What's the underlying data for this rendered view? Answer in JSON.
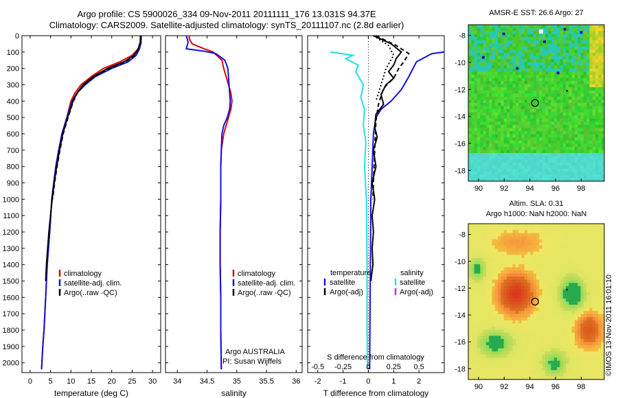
{
  "header": {
    "line1": "Argo profile: CS 5900026_334 09-Nov-2011 20111111_176 13.031S 94.37E",
    "line2": "Climatology: CARS2009. Satellite-adjusted climatology: synTS_20111107.nc (2.8d earlier)"
  },
  "right": {
    "sst_title": "AMSR-E SST: 26.6 Argo: 27",
    "sla_title1": "Altim. SLA: 0.31",
    "sla_title2": "Argo h1000: NaN h2000: NaN",
    "imos_label": "©IMOS 13-Nov-2011 16:01:10"
  },
  "colors": {
    "climatology": "#e00000",
    "satellite": "#1010e0",
    "argo": "#000000",
    "sat_salinity": "#20e0e8",
    "argo_salinity": "#e020e0"
  },
  "chart_data": [
    {
      "type": "line",
      "xlabel": "temperature (deg C)",
      "ylabel": "",
      "xlim": [
        -2,
        32
      ],
      "ylim": [
        2060,
        0
      ],
      "xticks": [
        0,
        5,
        10,
        15,
        20,
        25,
        30
      ],
      "yticks": [
        0,
        100,
        200,
        300,
        400,
        500,
        600,
        700,
        800,
        900,
        1000,
        1100,
        1200,
        1300,
        1400,
        1500,
        1600,
        1700,
        1800,
        1900,
        2000
      ],
      "legend": [
        "climatology",
        "satellite-adj. clim.",
        "Argo(..raw -QC)"
      ],
      "series": [
        {
          "name": "climatology",
          "color": "#e00000",
          "dash": "",
          "points": [
            [
              27,
              0
            ],
            [
              27,
              40
            ],
            [
              26.5,
              80
            ],
            [
              25,
              120
            ],
            [
              22,
              160
            ],
            [
              18,
              200
            ],
            [
              15,
              250
            ],
            [
              12.5,
              300
            ],
            [
              11,
              350
            ],
            [
              10,
              400
            ],
            [
              9,
              500
            ],
            [
              7.8,
              600
            ],
            [
              7,
              700
            ],
            [
              6.3,
              800
            ],
            [
              5.8,
              900
            ],
            [
              5.3,
              1000
            ],
            [
              4.8,
              1200
            ],
            [
              4.2,
              1400
            ],
            [
              3.8,
              1600
            ],
            [
              3.4,
              1800
            ],
            [
              3.1,
              1900
            ],
            [
              2.8,
              2040
            ]
          ]
        },
        {
          "name": "satellite-adj. clim.",
          "color": "#1010e0",
          "dash": "",
          "points": [
            [
              27.2,
              0
            ],
            [
              27.2,
              40
            ],
            [
              26.8,
              80
            ],
            [
              26,
              120
            ],
            [
              24,
              160
            ],
            [
              20,
              200
            ],
            [
              16,
              250
            ],
            [
              13.5,
              300
            ],
            [
              11.5,
              350
            ],
            [
              10.3,
              400
            ],
            [
              9,
              500
            ],
            [
              7.8,
              600
            ],
            [
              7,
              700
            ],
            [
              6.3,
              800
            ],
            [
              5.8,
              900
            ],
            [
              5.3,
              1000
            ],
            [
              4.8,
              1200
            ],
            [
              4.2,
              1400
            ],
            [
              3.8,
              1600
            ],
            [
              3.4,
              1800
            ],
            [
              3.1,
              1900
            ],
            [
              2.8,
              2040
            ]
          ]
        },
        {
          "name": "Argo(..raw -QC)",
          "color": "#000000",
          "dash": "",
          "points": [
            [
              27.1,
              0
            ],
            [
              27,
              40
            ],
            [
              26.5,
              80
            ],
            [
              25.5,
              120
            ],
            [
              23,
              160
            ],
            [
              19,
              200
            ],
            [
              15.5,
              250
            ],
            [
              13,
              300
            ],
            [
              11.5,
              350
            ],
            [
              10.5,
              400
            ],
            [
              9.2,
              500
            ],
            [
              8,
              600
            ],
            [
              7.2,
              700
            ],
            [
              6.5,
              800
            ],
            [
              5.9,
              900
            ],
            [
              5.4,
              1000
            ],
            [
              5,
              1100
            ],
            [
              4.6,
              1200
            ],
            [
              4.3,
              1300
            ],
            [
              4.0,
              1400
            ],
            [
              3.8,
              1500
            ]
          ]
        },
        {
          "name": "Argo dashed",
          "color": "#000000",
          "dash": "6,4",
          "points": [
            [
              27.2,
              0
            ],
            [
              27.1,
              40
            ],
            [
              26.6,
              80
            ],
            [
              25.7,
              120
            ],
            [
              23.4,
              160
            ],
            [
              19.5,
              200
            ],
            [
              15.8,
              250
            ],
            [
              13.2,
              300
            ],
            [
              11.6,
              350
            ],
            [
              10.6,
              400
            ],
            [
              9.3,
              500
            ],
            [
              8.1,
              600
            ],
            [
              7.3,
              700
            ],
            [
              6.6,
              800
            ],
            [
              6.0,
              900
            ],
            [
              5.5,
              1000
            ]
          ]
        }
      ]
    },
    {
      "type": "line",
      "xlabel": "salinity",
      "xlim": [
        33.8,
        36.1
      ],
      "ylim": [
        2060,
        0
      ],
      "xticks": [
        34,
        34.5,
        35,
        35.5,
        36
      ],
      "legend": [
        "climatology",
        "satellite-adj. clim.",
        "Argo(..raw -QC)"
      ],
      "annotation1": "Argo AUSTRALIA",
      "annotation2": "PI: Susan Wijffels",
      "series": [
        {
          "name": "climatology",
          "color": "#e00000",
          "dash": "",
          "points": [
            [
              34.2,
              0
            ],
            [
              34.2,
              20
            ],
            [
              34.25,
              50
            ],
            [
              34.45,
              80
            ],
            [
              34.6,
              100
            ],
            [
              34.75,
              150
            ],
            [
              34.78,
              200
            ],
            [
              34.82,
              250
            ],
            [
              34.86,
              300
            ],
            [
              34.9,
              350
            ],
            [
              34.92,
              400
            ],
            [
              34.9,
              450
            ],
            [
              34.86,
              500
            ],
            [
              34.82,
              550
            ],
            [
              34.78,
              600
            ],
            [
              34.74,
              700
            ],
            [
              34.73,
              800
            ],
            [
              34.73,
              1000
            ],
            [
              34.72,
              1200
            ],
            [
              34.72,
              1400
            ],
            [
              34.73,
              1600
            ],
            [
              34.73,
              1800
            ],
            [
              34.74,
              2040
            ]
          ]
        },
        {
          "name": "satellite-adj. clim.",
          "color": "#1010e0",
          "dash": "",
          "points": [
            [
              34.15,
              0
            ],
            [
              34.18,
              40
            ],
            [
              34.15,
              80
            ],
            [
              34.45,
              95
            ],
            [
              34.65,
              110
            ],
            [
              34.8,
              150
            ],
            [
              34.85,
              200
            ],
            [
              34.86,
              250
            ],
            [
              34.87,
              300
            ],
            [
              34.88,
              350
            ],
            [
              34.89,
              400
            ],
            [
              34.88,
              450
            ],
            [
              34.84,
              500
            ],
            [
              34.78,
              550
            ],
            [
              34.75,
              600
            ],
            [
              34.74,
              700
            ],
            [
              34.73,
              800
            ],
            [
              34.73,
              1000
            ],
            [
              34.72,
              1200
            ],
            [
              34.72,
              1400
            ],
            [
              34.73,
              1600
            ],
            [
              34.73,
              1800
            ],
            [
              34.74,
              2040
            ]
          ]
        }
      ]
    },
    {
      "type": "line",
      "xlabel": "T difference from climatology",
      "xlabel_top": "S difference from climatology",
      "xlim": [
        -2.4,
        3.0
      ],
      "ylim": [
        2060,
        0
      ],
      "xticks": [
        -2,
        -1,
        0,
        1,
        2
      ],
      "sticks": [
        [
          -0.5,
          -2
        ],
        [
          -0.25,
          -1
        ],
        [
          0.25,
          1
        ],
        [
          0.5,
          2
        ]
      ],
      "stick_labels": [
        "-0.5",
        "-0.25",
        "0",
        "0.25",
        "0.5"
      ],
      "legend_col1_title": "temperature",
      "legend_col2_title": "salinity",
      "legend_col1": [
        "satellite",
        "Argo(-adj)"
      ],
      "legend_col2": [
        "satellite",
        "Argo(-adj)"
      ],
      "series": [
        {
          "name": "T satellite",
          "color": "#1010e0",
          "dash": "",
          "points": [
            [
              3.0,
              100
            ],
            [
              2.5,
              110
            ],
            [
              1.9,
              160
            ],
            [
              1.6,
              250
            ],
            [
              1.3,
              330
            ],
            [
              0.9,
              400
            ],
            [
              0.5,
              450
            ],
            [
              0.3,
              500
            ],
            [
              0.2,
              600
            ],
            [
              0.15,
              800
            ],
            [
              0.1,
              1000
            ],
            [
              0.08,
              1400
            ],
            [
              0.06,
              1800
            ],
            [
              0.05,
              2040
            ]
          ]
        },
        {
          "name": "S satellite",
          "color": "#20e0e8",
          "dash": "",
          "points": [
            [
              -1.5,
              100
            ],
            [
              -0.6,
              120
            ],
            [
              -0.9,
              140
            ],
            [
              -0.4,
              180
            ],
            [
              -0.5,
              220
            ],
            [
              -0.2,
              300
            ],
            [
              -0.3,
              380
            ],
            [
              -0.15,
              450
            ],
            [
              -0.2,
              550
            ],
            [
              -0.1,
              650
            ],
            [
              -0.15,
              800
            ],
            [
              -0.08,
              1000
            ],
            [
              -0.05,
              1400
            ],
            [
              -0.05,
              1800
            ],
            [
              -0.04,
              2040
            ]
          ]
        },
        {
          "name": "T Argo adj",
          "color": "#000000",
          "dash": "",
          "points": [
            [
              0.2,
              0
            ],
            [
              0.9,
              50
            ],
            [
              1.3,
              100
            ],
            [
              1.1,
              140
            ],
            [
              1.0,
              180
            ],
            [
              0.8,
              220
            ],
            [
              1.0,
              260
            ],
            [
              0.7,
              300
            ],
            [
              0.5,
              360
            ],
            [
              0.6,
              420
            ],
            [
              0.3,
              480
            ],
            [
              0.25,
              560
            ],
            [
              0.35,
              620
            ],
            [
              0.2,
              700
            ],
            [
              0.3,
              800
            ],
            [
              0.15,
              900
            ],
            [
              0.25,
              1000
            ],
            [
              0.15,
              1100
            ],
            [
              0.2,
              1200
            ],
            [
              0.15,
              1300
            ],
            [
              0.18,
              1400
            ],
            [
              0.1,
              1500
            ]
          ]
        },
        {
          "name": "T Argo dashed",
          "color": "#000000",
          "dash": "6,4",
          "points": [
            [
              0.3,
              0
            ],
            [
              1.1,
              60
            ],
            [
              1.6,
              110
            ],
            [
              1.4,
              160
            ],
            [
              1.2,
              200
            ],
            [
              1.0,
              260
            ],
            [
              0.6,
              320
            ],
            [
              0.4,
              420
            ],
            [
              0.3,
              520
            ],
            [
              0.25,
              700
            ],
            [
              0.2,
              900
            ],
            [
              0.18,
              1000
            ]
          ]
        },
        {
          "name": "T Argo dotted",
          "color": "#000000",
          "dash": "2,3",
          "points": [
            [
              0.2,
              0
            ],
            [
              0.8,
              60
            ],
            [
              1.0,
              120
            ],
            [
              0.7,
              200
            ],
            [
              0.5,
              300
            ],
            [
              0.3,
              400
            ]
          ]
        }
      ]
    },
    {
      "type": "heatmap",
      "title": "AMSR-E SST: 26.6 Argo: 27",
      "xlim": [
        89.2,
        99.8
      ],
      "ylim": [
        -18.8,
        -7.2
      ],
      "xticks": [
        90,
        92,
        94,
        96,
        98
      ],
      "yticks": [
        -8,
        -10,
        -12,
        -14,
        -16,
        -18
      ],
      "argo_marker": [
        94.4,
        -13.0
      ]
    },
    {
      "type": "heatmap",
      "title": "Altim. SLA: 0.31",
      "xlim": [
        89.2,
        99.8
      ],
      "ylim": [
        -18.8,
        -7.2
      ],
      "xticks": [
        90,
        92,
        94,
        96,
        98
      ],
      "yticks": [
        -8,
        -10,
        -12,
        -14,
        -16,
        -18
      ],
      "argo_marker": [
        94.4,
        -13.0
      ]
    }
  ]
}
